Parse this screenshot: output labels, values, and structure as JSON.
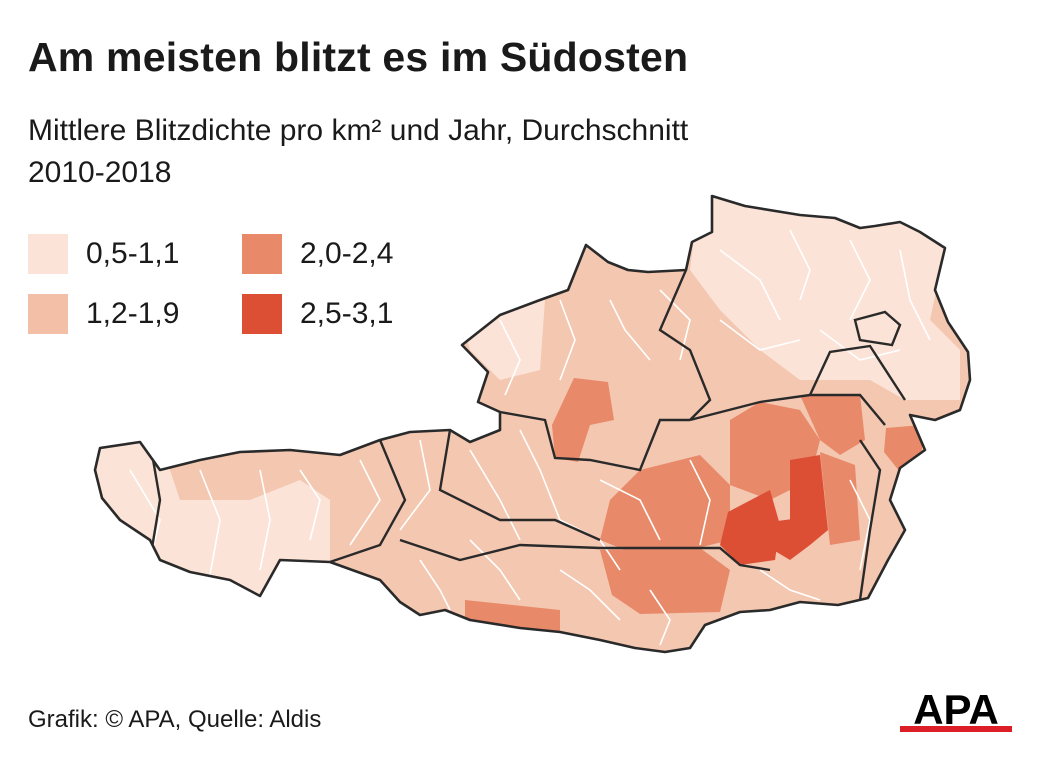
{
  "title": "Am meisten blitzt es im Südosten",
  "subtitle": "Mittlere Blitzdichte pro km² und Jahr, Durchschnitt 2010-2018",
  "legend": [
    {
      "label": "0,5-1,1",
      "color": "#fbe3d7"
    },
    {
      "label": "1,2-1,9",
      "color": "#f3c0a7"
    },
    {
      "label": "2,0-2,4",
      "color": "#e8896a"
    },
    {
      "label": "2,5-3,1",
      "color": "#dc4f35"
    }
  ],
  "credit": "Grafik: © APA, Quelle: Aldis",
  "logo": {
    "text": "APA",
    "color": "#000000",
    "accent": "#dc1f26"
  },
  "colors": {
    "border": "#2a2a2a",
    "inner_border": "#ffffff"
  }
}
